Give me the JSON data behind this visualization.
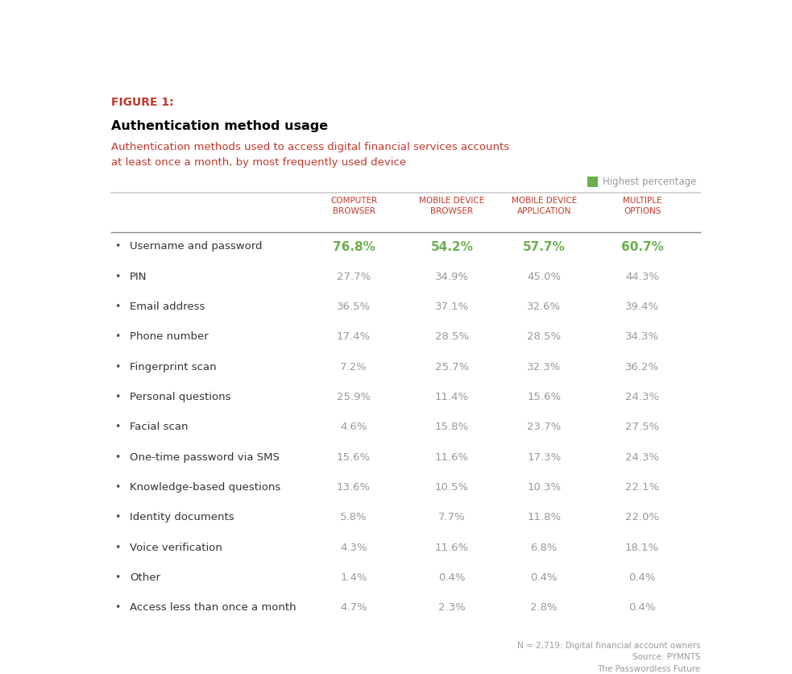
{
  "figure_label": "FIGURE 1:",
  "title": "Authentication method usage",
  "subtitle": "Authentication methods used to access digital financial services accounts\nat least once a month, by most frequently used device",
  "legend_label": "Highest percentage",
  "legend_color": "#6ab04c",
  "col_headers": [
    "COMPUTER\nBROWSER",
    "MOBILE DEVICE\nBROWSER",
    "MOBILE DEVICE\nAPPLICATION",
    "MULTIPLE\nOPTIONS"
  ],
  "col_header_color": "#c0392b",
  "rows": [
    {
      "label": "Username and password",
      "values": [
        "76.8%",
        "54.2%",
        "57.7%",
        "60.7%"
      ],
      "highlight": [
        true,
        true,
        true,
        true
      ]
    },
    {
      "label": "PIN",
      "values": [
        "27.7%",
        "34.9%",
        "45.0%",
        "44.3%"
      ],
      "highlight": [
        false,
        false,
        false,
        false
      ]
    },
    {
      "label": "Email address",
      "values": [
        "36.5%",
        "37.1%",
        "32.6%",
        "39.4%"
      ],
      "highlight": [
        false,
        false,
        false,
        false
      ]
    },
    {
      "label": "Phone number",
      "values": [
        "17.4%",
        "28.5%",
        "28.5%",
        "34.3%"
      ],
      "highlight": [
        false,
        false,
        false,
        false
      ]
    },
    {
      "label": "Fingerprint scan",
      "values": [
        "7.2%",
        "25.7%",
        "32.3%",
        "36.2%"
      ],
      "highlight": [
        false,
        false,
        false,
        false
      ]
    },
    {
      "label": "Personal questions",
      "values": [
        "25.9%",
        "11.4%",
        "15.6%",
        "24.3%"
      ],
      "highlight": [
        false,
        false,
        false,
        false
      ]
    },
    {
      "label": "Facial scan",
      "values": [
        "4.6%",
        "15.8%",
        "23.7%",
        "27.5%"
      ],
      "highlight": [
        false,
        false,
        false,
        false
      ]
    },
    {
      "label": "One-time password via SMS",
      "values": [
        "15.6%",
        "11.6%",
        "17.3%",
        "24.3%"
      ],
      "highlight": [
        false,
        false,
        false,
        false
      ]
    },
    {
      "label": "Knowledge-based questions",
      "values": [
        "13.6%",
        "10.5%",
        "10.3%",
        "22.1%"
      ],
      "highlight": [
        false,
        false,
        false,
        false
      ]
    },
    {
      "label": "Identity documents",
      "values": [
        "5.8%",
        "7.7%",
        "11.8%",
        "22.0%"
      ],
      "highlight": [
        false,
        false,
        false,
        false
      ]
    },
    {
      "label": "Voice verification",
      "values": [
        "4.3%",
        "11.6%",
        "6.8%",
        "18.1%"
      ],
      "highlight": [
        false,
        false,
        false,
        false
      ]
    },
    {
      "label": "Other",
      "values": [
        "1.4%",
        "0.4%",
        "0.4%",
        "0.4%"
      ],
      "highlight": [
        false,
        false,
        false,
        false
      ]
    },
    {
      "label": "Access less than once a month",
      "values": [
        "4.7%",
        "2.3%",
        "2.8%",
        "0.4%"
      ],
      "highlight": [
        false,
        false,
        false,
        false
      ]
    }
  ],
  "footnote": "N = 2,719: Digital financial account owners\nSource: PYMNTS\nThe Passwordless Future",
  "highlight_color": "#6ab04c",
  "normal_value_color": "#999999",
  "label_color": "#333333",
  "bg_color": "#ffffff",
  "figure_label_color": "#c0392b",
  "title_color": "#000000",
  "subtitle_color": "#c0392b"
}
